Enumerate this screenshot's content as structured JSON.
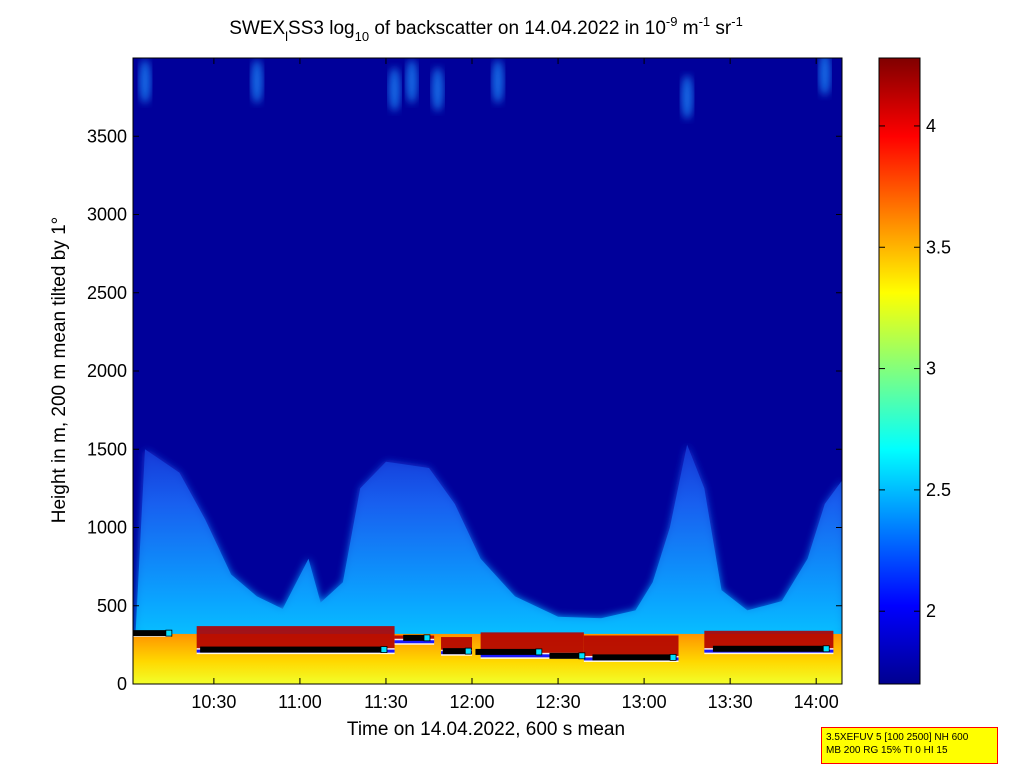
{
  "chart_data": {
    "type": "heatmap",
    "title": "SWEX_lSS3 log_10 of backscatter on 14.04.2022 in 10^-9 m^-1 sr^-1",
    "title_parts": {
      "prefix": "SWEX",
      "sub1": "l",
      "mid1": "SS3 log",
      "sub2": "10",
      "mid2": " of backscatter on 14.04.2022 in 10",
      "sup1": "-9",
      "mid3": " m",
      "sup2": "-1",
      "mid4": " sr",
      "sup3": "-1"
    },
    "xlabel": "Time on 14.04.2022, 600 s mean",
    "ylabel": "Height in m, 200 m mean tilted by 1°",
    "x_ticks": [
      "10:30",
      "11:00",
      "11:30",
      "12:00",
      "12:30",
      "13:00",
      "13:30",
      "14:00"
    ],
    "x_tick_hours": [
      10.5,
      11.0,
      11.5,
      12.0,
      12.5,
      13.0,
      13.5,
      14.0
    ],
    "x_range_hours": [
      10.03,
      14.15
    ],
    "y_ticks": [
      0,
      500,
      1000,
      1500,
      2000,
      2500,
      3000,
      3500
    ],
    "y_tick_labels": [
      "0",
      "500",
      "1000",
      "1500",
      "2000",
      "2500",
      "3000",
      "3500"
    ],
    "y_range": [
      0,
      4000
    ],
    "colorbar": {
      "ticks": [
        2,
        2.5,
        3,
        3.5,
        4
      ],
      "tick_labels": [
        "2",
        "2.5",
        "3",
        "3.5",
        "4"
      ],
      "range": [
        1.7,
        4.28
      ],
      "colormap": "jet"
    },
    "mixing_layer_height": [
      {
        "t": 10.1,
        "h": 1500
      },
      {
        "t": 10.3,
        "h": 1350
      },
      {
        "t": 10.45,
        "h": 1050
      },
      {
        "t": 10.6,
        "h": 700
      },
      {
        "t": 10.75,
        "h": 560
      },
      {
        "t": 10.9,
        "h": 480
      },
      {
        "t": 11.05,
        "h": 800
      },
      {
        "t": 11.12,
        "h": 520
      },
      {
        "t": 11.25,
        "h": 650
      },
      {
        "t": 11.35,
        "h": 1250
      },
      {
        "t": 11.5,
        "h": 1420
      },
      {
        "t": 11.75,
        "h": 1380
      },
      {
        "t": 11.9,
        "h": 1150
      },
      {
        "t": 12.05,
        "h": 800
      },
      {
        "t": 12.25,
        "h": 560
      },
      {
        "t": 12.5,
        "h": 430
      },
      {
        "t": 12.75,
        "h": 420
      },
      {
        "t": 12.95,
        "h": 470
      },
      {
        "t": 13.05,
        "h": 650
      },
      {
        "t": 13.15,
        "h": 1000
      },
      {
        "t": 13.25,
        "h": 1530
      },
      {
        "t": 13.35,
        "h": 1250
      },
      {
        "t": 13.45,
        "h": 600
      },
      {
        "t": 13.6,
        "h": 470
      },
      {
        "t": 13.8,
        "h": 530
      },
      {
        "t": 13.95,
        "h": 800
      },
      {
        "t": 14.05,
        "h": 1150
      },
      {
        "t": 14.15,
        "h": 1300
      }
    ],
    "cloud_layers": [
      {
        "t0": 10.03,
        "t1": 10.25,
        "base": 320,
        "top": 340
      },
      {
        "t0": 10.4,
        "t1": 11.55,
        "base": 210,
        "top": 370
      },
      {
        "t0": 11.55,
        "t1": 11.78,
        "base": 270,
        "top": 310
      },
      {
        "t0": 11.82,
        "t1": 12.0,
        "base": 200,
        "top": 300
      },
      {
        "t0": 12.05,
        "t1": 12.65,
        "base": 180,
        "top": 330
      },
      {
        "t0": 12.65,
        "t1": 13.2,
        "base": 160,
        "top": 310
      },
      {
        "t0": 13.35,
        "t1": 14.1,
        "base": 210,
        "top": 340
      }
    ],
    "cloud_base_markers": [
      {
        "t0": 10.03,
        "t1": 10.25,
        "h": 325
      },
      {
        "t0": 10.42,
        "t1": 11.5,
        "h": 220
      },
      {
        "t0": 11.6,
        "t1": 11.75,
        "h": 295
      },
      {
        "t0": 11.83,
        "t1": 11.99,
        "h": 210
      },
      {
        "t0": 12.02,
        "t1": 12.4,
        "h": 205
      },
      {
        "t0": 12.45,
        "t1": 12.65,
        "h": 180
      },
      {
        "t0": 12.7,
        "t1": 13.18,
        "h": 170
      },
      {
        "t0": 13.4,
        "t1": 14.07,
        "h": 225
      }
    ],
    "aerosol_plumes": [
      {
        "t": 10.1,
        "h": 3850
      },
      {
        "t": 10.75,
        "h": 3850
      },
      {
        "t": 11.55,
        "h": 3800
      },
      {
        "t": 11.65,
        "h": 3850
      },
      {
        "t": 11.8,
        "h": 3800
      },
      {
        "t": 12.15,
        "h": 3850
      },
      {
        "t": 13.25,
        "h": 3750
      },
      {
        "t": 14.05,
        "h": 3900
      }
    ]
  },
  "info_box": {
    "line1": "3.5XEFUV 5 [100 2500] NH 600",
    "line2": "MB 200 RG 15% TI 0 HI 15"
  }
}
